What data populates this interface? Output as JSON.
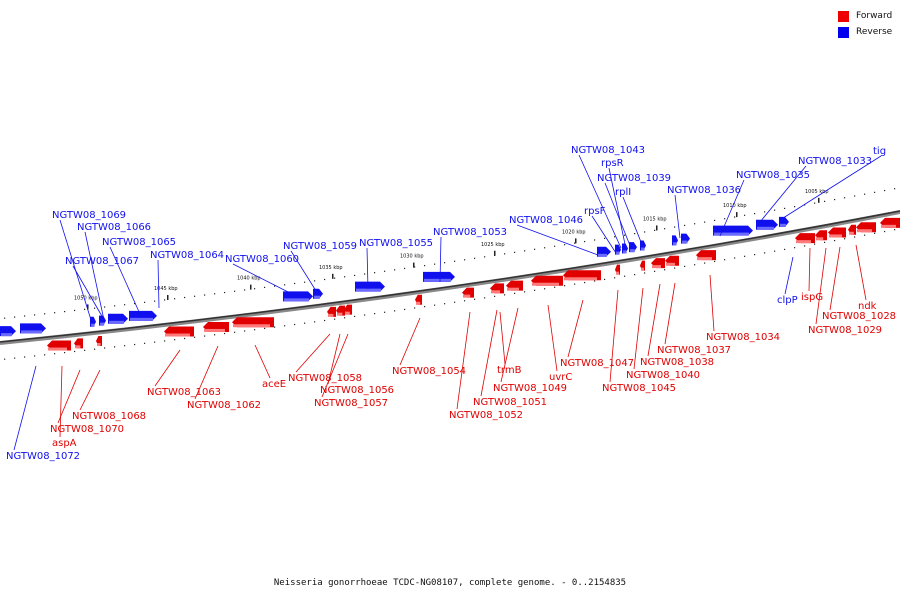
{
  "legend": {
    "forward_label": "Forward",
    "reverse_label": "Reverse",
    "forward_color": "#ee0000",
    "reverse_color": "#0000ee"
  },
  "caption": "Neisseria gonorrhoeae TCDC-NG08107, complete genome. - 0..2154835",
  "scale": {
    "ticks": [
      "1050 kbp",
      "1045 kbp",
      "1040 kbp",
      "1035 kbp",
      "1030 kbp",
      "1025 kbp",
      "1020 kbp",
      "1015 kbp",
      "1010 kbp",
      "1005 kbp"
    ]
  },
  "forward_labels": [
    "NGTW08_1068",
    "NGTW08_1070",
    "aspA",
    "NGTW08_1063",
    "NGTW08_1062",
    "aceE",
    "NGTW08_1058",
    "NGTW08_1056",
    "NGTW08_1057",
    "NGTW08_1054",
    "NGTW08_1052",
    "NGTW08_1051",
    "trmB",
    "NGTW08_1049",
    "uvrC",
    "NGTW08_1047",
    "NGTW08_1045",
    "NGTW08_1040",
    "NGTW08_1038",
    "NGTW08_1037",
    "NGTW08_1034",
    "ispG",
    "NGTW08_1029",
    "NGTW08_1028",
    "ndk"
  ],
  "reverse_labels": [
    "NGTW08_1072",
    "NGTW08_1069",
    "NGTW08_1066",
    "NGTW08_1067",
    "NGTW08_1065",
    "NGTW08_1064",
    "NGTW08_1060",
    "NGTW08_1059",
    "NGTW08_1055",
    "NGTW08_1053",
    "NGTW08_1046",
    "rpsF",
    "NGTW08_1043",
    "rpsR",
    "NGTW08_1039",
    "rplI",
    "NGTW08_1036",
    "NGTW08_1035",
    "NGTW08_1033",
    "tig",
    "clpP"
  ]
}
